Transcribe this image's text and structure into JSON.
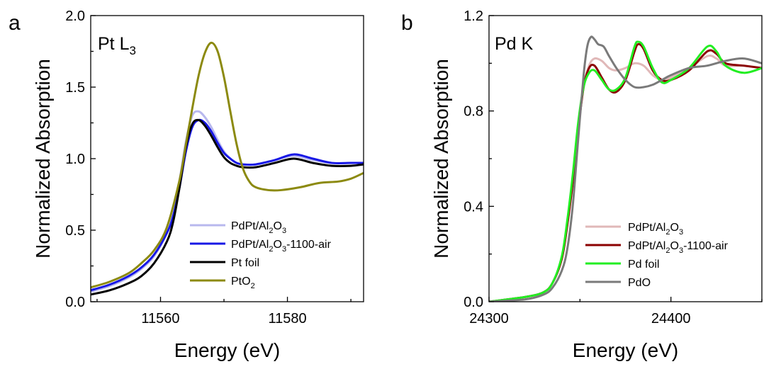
{
  "chart_data": [
    {
      "type": "line",
      "panel_label": "a",
      "title": "Pt L",
      "title_subscript": "3",
      "xlabel": "Energy (eV)",
      "ylabel": "Normalized Absorption",
      "xlim": [
        11549,
        11592
      ],
      "ylim": [
        0.0,
        2.0
      ],
      "xticks": [
        11560,
        11580
      ],
      "xtick_labels": [
        "11560",
        "11580"
      ],
      "yticks": [
        0.0,
        0.5,
        1.0,
        1.5,
        2.0
      ],
      "ytick_labels": [
        "0.0",
        "0.5",
        "1.0",
        "1.5",
        "2.0"
      ],
      "grid": false,
      "legend_position": "bottom-right",
      "series": [
        {
          "name": "PdPt/Al2O3",
          "legend_parts": [
            {
              "t": "PdPt/Al"
            },
            {
              "t": "2",
              "sub": true
            },
            {
              "t": "O"
            },
            {
              "t": "3",
              "sub": true
            }
          ],
          "color": "#b8b8ee",
          "x": [
            11549,
            11552,
            11555,
            11557,
            11559,
            11561,
            11562,
            11563,
            11564,
            11565,
            11566,
            11567,
            11568,
            11569,
            11570,
            11571,
            11572,
            11573,
            11575,
            11578,
            11581,
            11584,
            11587,
            11590,
            11592
          ],
          "y": [
            0.07,
            0.11,
            0.17,
            0.23,
            0.32,
            0.48,
            0.62,
            0.85,
            1.12,
            1.3,
            1.33,
            1.29,
            1.22,
            1.13,
            1.05,
            1.0,
            0.97,
            0.96,
            0.96,
            0.99,
            1.02,
            0.99,
            0.97,
            0.97,
            0.97
          ]
        },
        {
          "name": "PdPt/Al2O3-1100-air",
          "legend_parts": [
            {
              "t": "PdPt/Al"
            },
            {
              "t": "2",
              "sub": true
            },
            {
              "t": "O"
            },
            {
              "t": "3",
              "sub": true
            },
            {
              "t": "-1100-air"
            }
          ],
          "color": "#1818e6",
          "x": [
            11549,
            11552,
            11555,
            11557,
            11559,
            11561,
            11562,
            11563,
            11564,
            11565,
            11566,
            11567,
            11568,
            11569,
            11570,
            11571,
            11572,
            11573,
            11575,
            11578,
            11581,
            11584,
            11587,
            11590,
            11592
          ],
          "y": [
            0.08,
            0.12,
            0.18,
            0.24,
            0.33,
            0.48,
            0.6,
            0.8,
            1.05,
            1.22,
            1.27,
            1.25,
            1.19,
            1.11,
            1.04,
            1.0,
            0.97,
            0.96,
            0.96,
            0.99,
            1.03,
            1.0,
            0.97,
            0.97,
            0.97
          ]
        },
        {
          "name": "Pt foil",
          "legend_parts": [
            {
              "t": "Pt foil"
            }
          ],
          "color": "#000000",
          "x": [
            11549,
            11552,
            11555,
            11557,
            11559,
            11561,
            11562,
            11563,
            11564,
            11565,
            11566,
            11567,
            11568,
            11569,
            11570,
            11571,
            11572,
            11573,
            11575,
            11578,
            11581,
            11584,
            11587,
            11590,
            11592
          ],
          "y": [
            0.05,
            0.08,
            0.13,
            0.18,
            0.27,
            0.42,
            0.56,
            0.8,
            1.08,
            1.24,
            1.27,
            1.23,
            1.16,
            1.08,
            1.01,
            0.97,
            0.95,
            0.94,
            0.94,
            0.97,
            1.0,
            0.97,
            0.95,
            0.95,
            0.96
          ]
        },
        {
          "name": "PtO2",
          "legend_parts": [
            {
              "t": "PtO"
            },
            {
              "t": "2",
              "sub": true
            }
          ],
          "color": "#8c8a10",
          "x": [
            11549,
            11552,
            11555,
            11557,
            11559,
            11561,
            11563,
            11564,
            11565,
            11566,
            11567,
            11568,
            11569,
            11570,
            11571,
            11572,
            11573,
            11574,
            11575,
            11577,
            11579,
            11582,
            11585,
            11588,
            11590,
            11592
          ],
          "y": [
            0.1,
            0.14,
            0.2,
            0.27,
            0.36,
            0.52,
            0.85,
            1.1,
            1.35,
            1.58,
            1.74,
            1.81,
            1.75,
            1.57,
            1.33,
            1.1,
            0.93,
            0.84,
            0.8,
            0.78,
            0.78,
            0.8,
            0.83,
            0.84,
            0.86,
            0.9
          ]
        }
      ]
    },
    {
      "type": "line",
      "panel_label": "b",
      "title": "Pd K",
      "xlabel": "Energy (eV)",
      "ylabel": "Normalized Absorption",
      "xlim": [
        24300,
        24450
      ],
      "ylim": [
        0.0,
        1.2
      ],
      "xticks": [
        24300,
        24400
      ],
      "xtick_labels": [
        "24300",
        "24400"
      ],
      "yticks": [
        0.0,
        0.4,
        0.8,
        1.2
      ],
      "ytick_labels": [
        "0.0",
        "0.4",
        "0.8",
        "1.2"
      ],
      "grid": false,
      "legend_position": "bottom-right",
      "series": [
        {
          "name": "PdPt/Al2O3",
          "legend_parts": [
            {
              "t": "PdPt/Al"
            },
            {
              "t": "2",
              "sub": true
            },
            {
              "t": "O"
            },
            {
              "t": "3",
              "sub": true
            }
          ],
          "color": "#e0b8b8",
          "x": [
            24300,
            24320,
            24330,
            24335,
            24340,
            24343,
            24346,
            24349,
            24352,
            24355,
            24358,
            24362,
            24366,
            24370,
            24375,
            24380,
            24385,
            24390,
            24395,
            24400,
            24410,
            24420,
            24425,
            24430,
            24440,
            24450
          ],
          "y": [
            0.0,
            0.02,
            0.04,
            0.08,
            0.18,
            0.32,
            0.5,
            0.72,
            0.9,
            0.99,
            1.02,
            1.01,
            0.98,
            0.97,
            0.98,
            1.0,
            0.99,
            0.95,
            0.93,
            0.94,
            0.98,
            1.03,
            1.02,
            0.99,
            0.99,
            0.98
          ]
        },
        {
          "name": "PdPt/Al2O3-1100-air",
          "legend_parts": [
            {
              "t": "PdPt/Al"
            },
            {
              "t": "2",
              "sub": true
            },
            {
              "t": "O"
            },
            {
              "t": "3",
              "sub": true
            },
            {
              "t": "-1100-air"
            }
          ],
          "color": "#8b0000",
          "x": [
            24300,
            24320,
            24330,
            24335,
            24340,
            24343,
            24346,
            24349,
            24352,
            24355,
            24358,
            24362,
            24366,
            24370,
            24375,
            24380,
            24382,
            24385,
            24390,
            24395,
            24400,
            24410,
            24420,
            24425,
            24430,
            24440,
            24450
          ],
          "y": [
            0.0,
            0.02,
            0.04,
            0.08,
            0.18,
            0.32,
            0.5,
            0.72,
            0.9,
            0.98,
            0.99,
            0.94,
            0.89,
            0.88,
            0.93,
            1.05,
            1.08,
            1.06,
            0.97,
            0.93,
            0.93,
            0.97,
            1.05,
            1.04,
            1.0,
            0.99,
            0.98
          ]
        },
        {
          "name": "Pd foil",
          "legend_parts": [
            {
              "t": "Pd foil"
            }
          ],
          "color": "#22ee22",
          "x": [
            24300,
            24320,
            24330,
            24335,
            24340,
            24343,
            24346,
            24349,
            24352,
            24355,
            24358,
            24362,
            24366,
            24370,
            24375,
            24380,
            24382,
            24385,
            24390,
            24395,
            24400,
            24410,
            24420,
            24425,
            24430,
            24440,
            24450
          ],
          "y": [
            0.0,
            0.02,
            0.04,
            0.08,
            0.19,
            0.34,
            0.53,
            0.75,
            0.9,
            0.96,
            0.97,
            0.93,
            0.89,
            0.89,
            0.94,
            1.07,
            1.09,
            1.07,
            0.98,
            0.92,
            0.93,
            0.98,
            1.07,
            1.05,
            0.99,
            0.96,
            0.98
          ]
        },
        {
          "name": "PdO",
          "legend_parts": [
            {
              "t": "PdO"
            }
          ],
          "color": "#7a7a7a",
          "x": [
            24300,
            24320,
            24330,
            24335,
            24340,
            24343,
            24346,
            24349,
            24352,
            24354,
            24356,
            24358,
            24360,
            24363,
            24366,
            24370,
            24375,
            24380,
            24385,
            24390,
            24395,
            24400,
            24410,
            24420,
            24430,
            24440,
            24450
          ],
          "y": [
            0.0,
            0.01,
            0.03,
            0.06,
            0.13,
            0.22,
            0.4,
            0.68,
            0.95,
            1.07,
            1.11,
            1.1,
            1.08,
            1.07,
            1.03,
            0.98,
            0.93,
            0.9,
            0.9,
            0.91,
            0.93,
            0.95,
            0.98,
            0.99,
            1.01,
            1.02,
            1.0
          ]
        }
      ]
    }
  ]
}
